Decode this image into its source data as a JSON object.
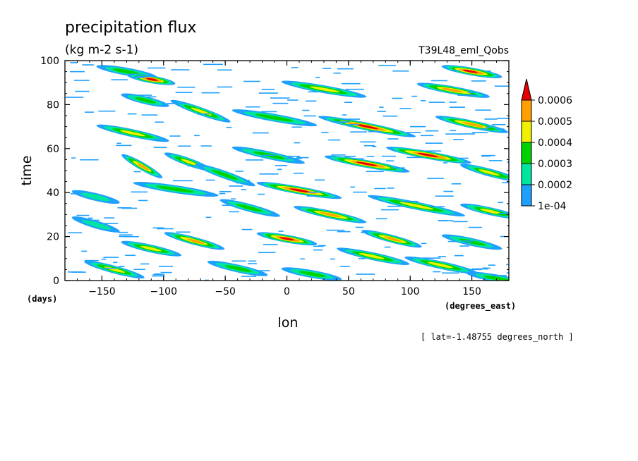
{
  "chart_data": {
    "type": "heatmap",
    "title": "precipitation flux",
    "units": "(kg m-2 s-1)",
    "run_label": "T39L48_eml_Qobs",
    "xlabel": "lon",
    "ylabel": "time",
    "x_units": "(degrees_east)",
    "y_units": "(days)",
    "xlim": [
      -180,
      180
    ],
    "ylim": [
      0,
      100
    ],
    "x_ticks": [
      -150,
      -100,
      -50,
      0,
      50,
      100,
      150
    ],
    "y_ticks": [
      0,
      20,
      40,
      60,
      80,
      100
    ],
    "x_tick_labels": [
      "−150",
      "−100",
      "−50",
      "0",
      "50",
      "100",
      "150"
    ],
    "y_tick_labels": [
      "0",
      "20",
      "40",
      "60",
      "80",
      "100"
    ],
    "footnote": "[ lat=-1.48755 degrees_north ]",
    "colorbar": {
      "levels": [
        0.0001,
        0.0002,
        0.0003,
        0.0004,
        0.0005,
        0.0006
      ],
      "labels": [
        "1e-04",
        "0.0002",
        "0.0003",
        "0.0004",
        "0.0005",
        "0.0006"
      ],
      "colors": [
        "#1ea0ff",
        "#00e6a0",
        "#00d200",
        "#f0f000",
        "#ffa000",
        "#e60000"
      ],
      "extend": "max"
    },
    "features": [
      {
        "lon": -150,
        "day": 97,
        "lon_len": 40,
        "day_len": -4,
        "peak": 3
      },
      {
        "lon": -125,
        "day": 93,
        "lon_len": 30,
        "day_len": -3,
        "peak": 6
      },
      {
        "lon": -90,
        "day": 81,
        "lon_len": 40,
        "day_len": -8,
        "peak": 4
      },
      {
        "lon": -130,
        "day": 84,
        "lon_len": 30,
        "day_len": -4,
        "peak": 3
      },
      {
        "lon": -150,
        "day": 70,
        "lon_len": 50,
        "day_len": -6,
        "peak": 4
      },
      {
        "lon": -130,
        "day": 56,
        "lon_len": 25,
        "day_len": -8,
        "peak": 5
      },
      {
        "lon": -95,
        "day": 57,
        "lon_len": 30,
        "day_len": -6,
        "peak": 4
      },
      {
        "lon": -70,
        "day": 52,
        "lon_len": 40,
        "day_len": -8,
        "peak": 3
      },
      {
        "lon": -120,
        "day": 44,
        "lon_len": 60,
        "day_len": -5,
        "peak": 3
      },
      {
        "lon": -20,
        "day": 44,
        "lon_len": 60,
        "day_len": -6,
        "peak": 6
      },
      {
        "lon": -50,
        "day": 36,
        "lon_len": 40,
        "day_len": -6,
        "peak": 3
      },
      {
        "lon": -95,
        "day": 21,
        "lon_len": 40,
        "day_len": -6,
        "peak": 5
      },
      {
        "lon": -20,
        "day": 21,
        "lon_len": 40,
        "day_len": -4,
        "peak": 6
      },
      {
        "lon": -130,
        "day": 17,
        "lon_len": 40,
        "day_len": -5,
        "peak": 4
      },
      {
        "lon": -160,
        "day": 8,
        "lon_len": 40,
        "day_len": -6,
        "peak": 4
      },
      {
        "lon": 10,
        "day": 33,
        "lon_len": 50,
        "day_len": -6,
        "peak": 5
      },
      {
        "lon": 35,
        "day": 56,
        "lon_len": 60,
        "day_len": -6,
        "peak": 6
      },
      {
        "lon": 30,
        "day": 74,
        "lon_len": 70,
        "day_len": -8,
        "peak": 6
      },
      {
        "lon": 0,
        "day": 90,
        "lon_len": 60,
        "day_len": -6,
        "peak": 4
      },
      {
        "lon": 85,
        "day": 60,
        "lon_len": 60,
        "day_len": -6,
        "peak": 6
      },
      {
        "lon": 70,
        "day": 38,
        "lon_len": 70,
        "day_len": -8,
        "peak": 4
      },
      {
        "lon": 65,
        "day": 22,
        "lon_len": 40,
        "day_len": -6,
        "peak": 5
      },
      {
        "lon": 45,
        "day": 14,
        "lon_len": 50,
        "day_len": -6,
        "peak": 4
      },
      {
        "lon": 110,
        "day": 89,
        "lon_len": 50,
        "day_len": -5,
        "peak": 5
      },
      {
        "lon": 125,
        "day": 74,
        "lon_len": 50,
        "day_len": -6,
        "peak": 5
      },
      {
        "lon": 130,
        "day": 97,
        "lon_len": 40,
        "day_len": -4,
        "peak": 6
      },
      {
        "lon": 145,
        "day": 52,
        "lon_len": 40,
        "day_len": -6,
        "peak": 4
      },
      {
        "lon": 145,
        "day": 34,
        "lon_len": 40,
        "day_len": -5,
        "peak": 4
      },
      {
        "lon": 100,
        "day": 10,
        "lon_len": 50,
        "day_len": -6,
        "peak": 4
      },
      {
        "lon": 130,
        "day": 20,
        "lon_len": 40,
        "day_len": -5,
        "peak": 3
      },
      {
        "lon": -40,
        "day": 77,
        "lon_len": 60,
        "day_len": -6,
        "peak": 3
      },
      {
        "lon": -40,
        "day": 60,
        "lon_len": 50,
        "day_len": -6,
        "peak": 3
      },
      {
        "lon": -60,
        "day": 8,
        "lon_len": 40,
        "day_len": -5,
        "peak": 3
      },
      {
        "lon": 0,
        "day": 5,
        "lon_len": 40,
        "day_len": -4,
        "peak": 3
      },
      {
        "lon": 150,
        "day": 3,
        "lon_len": 40,
        "day_len": -4,
        "peak": 3
      },
      {
        "lon": -170,
        "day": 40,
        "lon_len": 30,
        "day_len": -4,
        "peak": 2
      },
      {
        "lon": -170,
        "day": 28,
        "lon_len": 30,
        "day_len": -5,
        "peak": 2
      }
    ]
  }
}
